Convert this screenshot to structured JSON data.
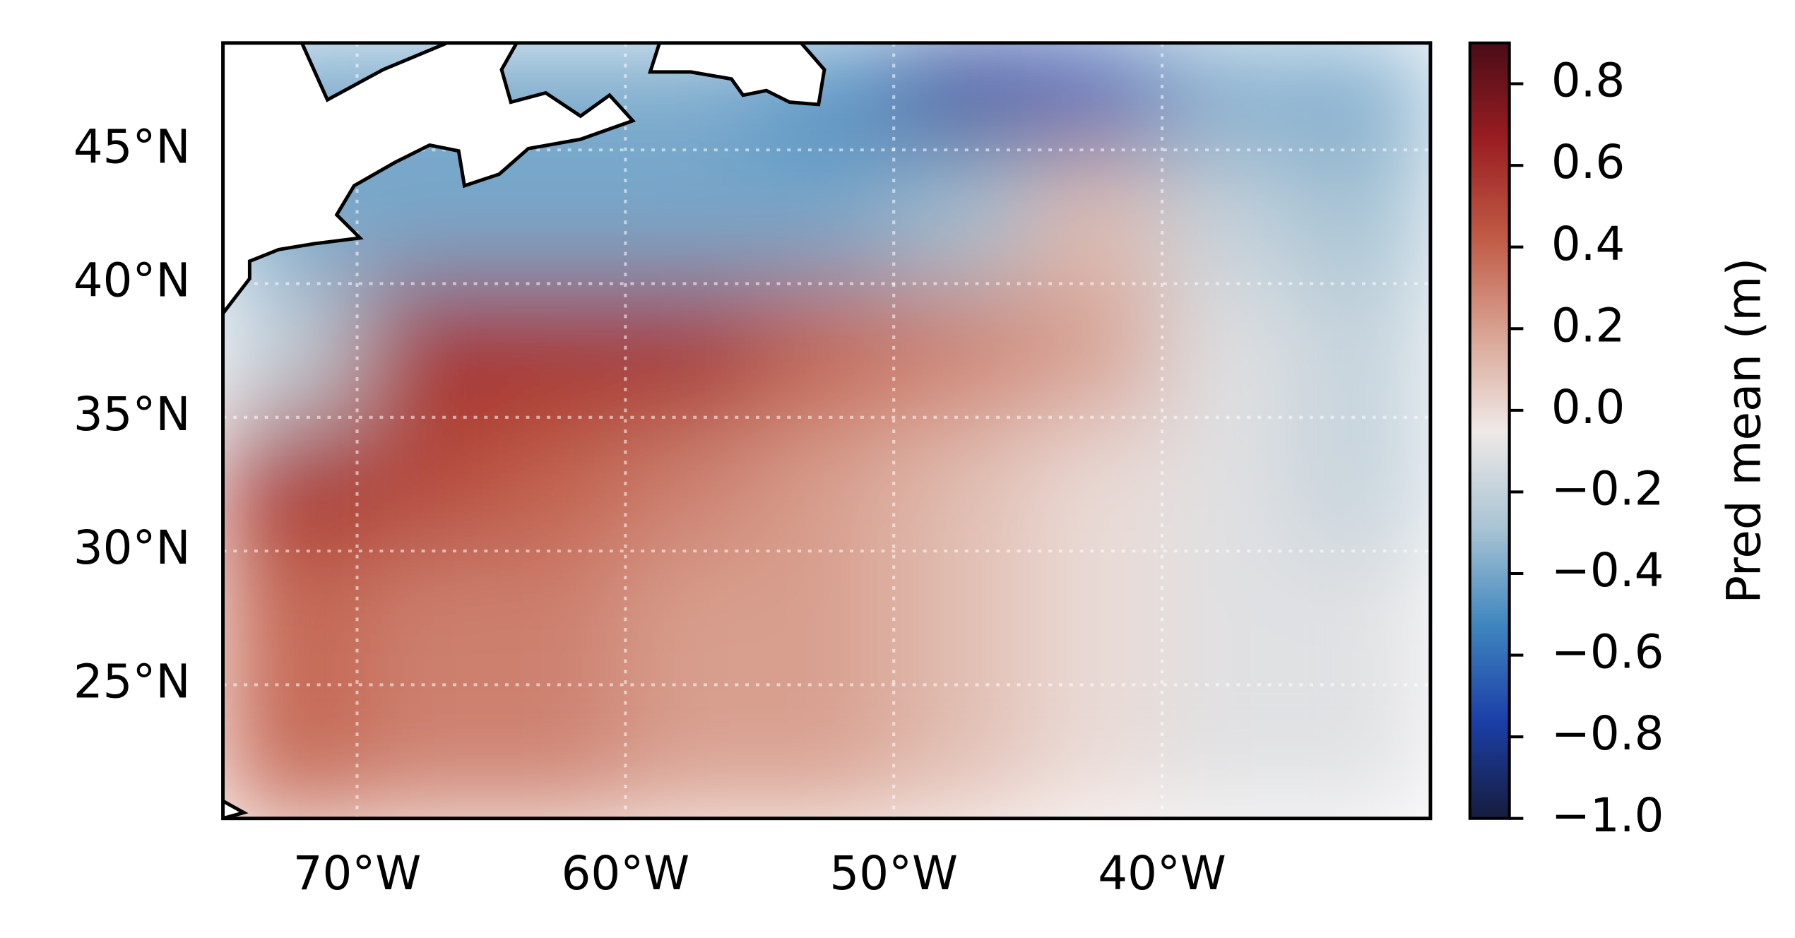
{
  "chart_data": {
    "type": "heatmap",
    "xlim": [
      -75,
      -30
    ],
    "ylim": [
      20,
      49
    ],
    "xticks": [
      {
        "value": -70,
        "label": "70°W"
      },
      {
        "value": -60,
        "label": "60°W"
      },
      {
        "value": -50,
        "label": "50°W"
      },
      {
        "value": -40,
        "label": "40°W"
      }
    ],
    "yticks": [
      {
        "value": 25,
        "label": "25°N"
      },
      {
        "value": 30,
        "label": "30°N"
      },
      {
        "value": 35,
        "label": "35°N"
      },
      {
        "value": 40,
        "label": "40°N"
      },
      {
        "value": 45,
        "label": "45°N"
      }
    ],
    "grid": true,
    "lon_edges": [
      -75,
      -70,
      -65,
      -60,
      -55,
      -50,
      -45,
      -40,
      -35,
      -30
    ],
    "lat_edges": [
      49,
      45,
      40,
      35,
      30,
      25,
      20
    ],
    "values": [
      [
        -0.4,
        -0.4,
        -0.4,
        -0.4,
        -0.5,
        -0.8,
        -0.7,
        -0.4,
        -0.4
      ],
      [
        -0.4,
        -0.4,
        -0.4,
        -0.4,
        -0.4,
        -0.3,
        0.1,
        -0.2,
        -0.3
      ],
      [
        -0.2,
        0.6,
        0.6,
        0.6,
        0.4,
        0.3,
        0.2,
        -0.1,
        -0.2
      ],
      [
        0.6,
        0.5,
        0.4,
        0.3,
        0.2,
        0.1,
        0.0,
        -0.1,
        -0.2
      ],
      [
        0.4,
        0.3,
        0.3,
        0.2,
        0.2,
        0.1,
        0.0,
        -0.1,
        -0.1
      ],
      [
        0.4,
        0.3,
        0.3,
        0.2,
        0.2,
        0.1,
        0.0,
        -0.1,
        -0.1
      ]
    ],
    "clim": [
      -1.0,
      0.9
    ],
    "colormap": [
      "#161c3d",
      "#1b3fa8",
      "#3f86bf",
      "#a9c4d4",
      "#efe9e7",
      "#d9a392",
      "#c05a45",
      "#9a1e22",
      "#4a0c18"
    ],
    "colorbar_label": "Pred mean (m)",
    "colorbar_ticks": [
      {
        "value": -1.0,
        "label": "−1.0"
      },
      {
        "value": -0.8,
        "label": "−0.8"
      },
      {
        "value": -0.6,
        "label": "−0.6"
      },
      {
        "value": -0.4,
        "label": "−0.4"
      },
      {
        "value": -0.2,
        "label": "−0.2"
      },
      {
        "value": 0.0,
        "label": "0.0"
      },
      0.2,
      0.4,
      0.6,
      0.8
    ]
  }
}
